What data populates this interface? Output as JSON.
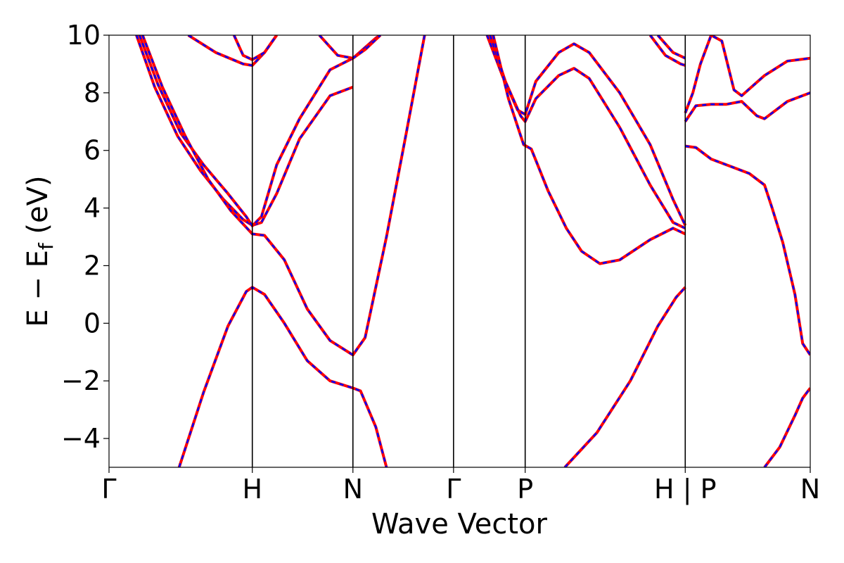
{
  "chart_data": {
    "type": "line",
    "title": "",
    "xlabel": "Wave Vector",
    "ylabel": "E − E",
    "ylabel_subscript": "f",
    "ylabel_unit": " (eV)",
    "ylim": [
      -5,
      10
    ],
    "yticks": [
      "−4",
      "−2",
      "0",
      "2",
      "4",
      "6",
      "8",
      "10"
    ],
    "ytick_values": [
      -4,
      -2,
      0,
      2,
      4,
      6,
      8,
      10
    ],
    "xlim": [
      0,
      4.6
    ],
    "kpoints": [
      {
        "label": "Γ",
        "x": 0.0
      },
      {
        "label": "H",
        "x": 0.94
      },
      {
        "label": "N",
        "x": 1.6
      },
      {
        "label": "Γ",
        "x": 2.26
      },
      {
        "label": "P",
        "x": 2.73
      },
      {
        "label": "H | P",
        "x": 3.78
      },
      {
        "label": "N",
        "x": 4.6
      }
    ],
    "grid": false,
    "colors": {
      "blue": "#0000ff",
      "red": "#ff0000",
      "vline": "#000000"
    },
    "series": [
      {
        "values": [
          [
            0.18,
            10
          ],
          [
            0.3,
            8.2
          ],
          [
            0.45,
            6.5
          ],
          [
            0.6,
            5.3
          ],
          [
            0.75,
            4.3
          ],
          [
            0.88,
            3.6
          ],
          [
            0.94,
            3.4
          ],
          [
            1.0,
            3.5
          ],
          [
            1.1,
            4.5
          ],
          [
            1.25,
            6.4
          ],
          [
            1.45,
            7.9
          ],
          [
            1.6,
            8.2
          ]
        ]
      },
      {
        "values": [
          [
            0.2,
            10
          ],
          [
            0.32,
            8.3
          ],
          [
            0.47,
            6.6
          ],
          [
            0.62,
            5.5
          ],
          [
            0.78,
            4.5
          ],
          [
            0.9,
            3.7
          ],
          [
            0.94,
            3.38
          ],
          [
            1.0,
            3.7
          ],
          [
            1.1,
            5.5
          ],
          [
            1.25,
            7.1
          ],
          [
            1.45,
            8.8
          ],
          [
            1.6,
            9.2
          ],
          [
            1.75,
            9.9
          ],
          [
            1.78,
            10
          ]
        ]
      },
      {
        "values": [
          [
            0.22,
            10
          ],
          [
            0.35,
            8.2
          ],
          [
            0.5,
            6.5
          ],
          [
            0.65,
            5.0
          ],
          [
            0.8,
            3.9
          ],
          [
            0.94,
            3.1
          ],
          [
            1.02,
            3.05
          ],
          [
            1.15,
            2.2
          ],
          [
            1.3,
            0.5
          ],
          [
            1.45,
            -0.6
          ],
          [
            1.6,
            -1.1
          ],
          [
            1.68,
            -0.5
          ],
          [
            1.82,
            3.0
          ],
          [
            1.95,
            6.6
          ],
          [
            2.07,
            10
          ]
        ]
      },
      {
        "values": [
          [
            0.46,
            -5
          ],
          [
            0.62,
            -2.4
          ],
          [
            0.78,
            -0.1
          ],
          [
            0.9,
            1.1
          ],
          [
            0.94,
            1.25
          ],
          [
            1.02,
            1.0
          ],
          [
            1.15,
            0.0
          ],
          [
            1.3,
            -1.3
          ],
          [
            1.45,
            -2.0
          ],
          [
            1.6,
            -2.25
          ],
          [
            1.65,
            -2.35
          ],
          [
            1.75,
            -3.6
          ],
          [
            1.82,
            -5
          ]
        ]
      },
      {
        "values": [
          [
            0.52,
            10
          ],
          [
            0.7,
            9.4
          ],
          [
            0.88,
            9.0
          ],
          [
            0.94,
            8.95
          ],
          [
            1.02,
            9.4
          ],
          [
            1.1,
            10
          ]
        ]
      },
      {
        "values": [
          [
            0.82,
            10
          ],
          [
            0.88,
            9.3
          ],
          [
            0.94,
            9.15
          ],
          [
            1.02,
            9.4
          ],
          [
            1.1,
            10
          ]
        ]
      },
      {
        "values": [
          [
            1.38,
            10
          ],
          [
            1.5,
            9.3
          ],
          [
            1.6,
            9.2
          ],
          [
            1.68,
            9.5
          ],
          [
            1.78,
            10
          ]
        ]
      },
      {
        "values": [
          [
            2.48,
            10
          ],
          [
            2.58,
            8.6
          ],
          [
            2.68,
            7.4
          ],
          [
            2.73,
            7.25
          ],
          [
            2.8,
            8.4
          ],
          [
            2.95,
            9.4
          ],
          [
            3.05,
            9.7
          ],
          [
            3.15,
            9.4
          ],
          [
            3.35,
            8.0
          ],
          [
            3.55,
            6.2
          ],
          [
            3.7,
            4.3
          ],
          [
            3.78,
            3.4
          ]
        ]
      },
      {
        "values": [
          [
            2.5,
            10
          ],
          [
            2.6,
            8.4
          ],
          [
            2.7,
            7.2
          ],
          [
            2.73,
            7.0
          ],
          [
            2.8,
            7.8
          ],
          [
            2.95,
            8.6
          ],
          [
            3.05,
            8.85
          ],
          [
            3.15,
            8.5
          ],
          [
            3.35,
            6.8
          ],
          [
            3.55,
            4.8
          ],
          [
            3.7,
            3.5
          ],
          [
            3.78,
            3.3
          ]
        ]
      },
      {
        "values": [
          [
            2.52,
            10
          ],
          [
            2.62,
            7.8
          ],
          [
            2.72,
            6.2
          ],
          [
            2.77,
            6.05
          ],
          [
            2.88,
            4.6
          ],
          [
            3.0,
            3.3
          ],
          [
            3.1,
            2.5
          ],
          [
            3.22,
            2.07
          ],
          [
            3.35,
            2.2
          ],
          [
            3.55,
            2.9
          ],
          [
            3.7,
            3.3
          ],
          [
            3.78,
            3.1
          ]
        ]
      },
      {
        "values": [
          [
            2.99,
            -5
          ],
          [
            3.2,
            -3.8
          ],
          [
            3.42,
            -2.0
          ],
          [
            3.6,
            -0.1
          ],
          [
            3.72,
            0.9
          ],
          [
            3.78,
            1.25
          ]
        ]
      },
      {
        "values": [
          [
            3.55,
            10
          ],
          [
            3.65,
            9.3
          ],
          [
            3.75,
            9.0
          ],
          [
            3.78,
            8.95
          ]
        ]
      },
      {
        "values": [
          [
            3.6,
            10
          ],
          [
            3.7,
            9.4
          ],
          [
            3.78,
            9.2
          ]
        ]
      },
      {
        "values": [
          [
            3.78,
            7.3
          ],
          [
            3.83,
            8.0
          ],
          [
            3.88,
            9.0
          ],
          [
            3.95,
            10.0
          ],
          [
            4.02,
            9.8
          ],
          [
            4.1,
            8.1
          ],
          [
            4.15,
            7.9
          ],
          [
            4.3,
            8.6
          ],
          [
            4.45,
            9.1
          ],
          [
            4.6,
            9.2
          ]
        ]
      },
      {
        "values": [
          [
            3.78,
            7.0
          ],
          [
            3.85,
            7.55
          ],
          [
            3.95,
            7.6
          ],
          [
            4.05,
            7.6
          ],
          [
            4.15,
            7.7
          ],
          [
            4.25,
            7.2
          ],
          [
            4.3,
            7.1
          ],
          [
            4.45,
            7.7
          ],
          [
            4.6,
            8.0
          ]
        ]
      },
      {
        "values": [
          [
            3.78,
            6.15
          ],
          [
            3.85,
            6.1
          ],
          [
            3.95,
            5.7
          ],
          [
            4.1,
            5.4
          ],
          [
            4.2,
            5.2
          ],
          [
            4.3,
            4.8
          ],
          [
            4.35,
            4.0
          ],
          [
            4.42,
            2.8
          ],
          [
            4.5,
            1.0
          ],
          [
            4.55,
            -0.7
          ],
          [
            4.6,
            -1.1
          ]
        ]
      },
      {
        "values": [
          [
            4.3,
            -5
          ],
          [
            4.4,
            -4.3
          ],
          [
            4.5,
            -3.2
          ],
          [
            4.55,
            -2.6
          ],
          [
            4.6,
            -2.25
          ]
        ]
      }
    ]
  }
}
